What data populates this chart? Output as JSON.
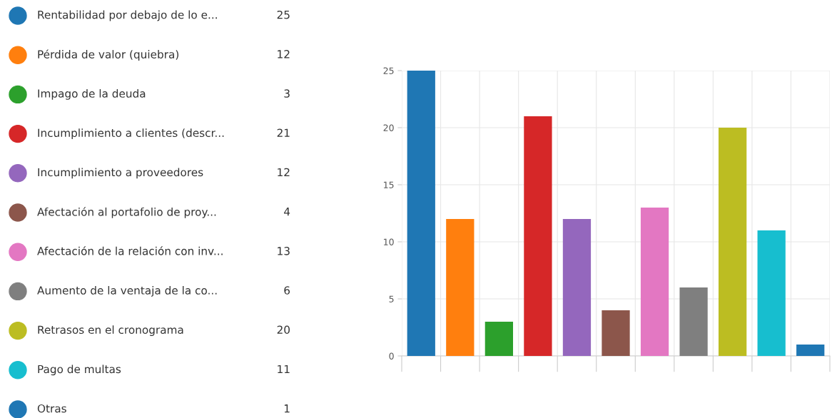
{
  "chart_data": [
    {
      "type": "other",
      "annotations": [
        "Rentabilidad por debajo de lo e...",
        "25",
        "Pérdida de valor (quiebra)",
        "12",
        "Impago de la deuda",
        "3",
        "Incumplimiento a clientes (descr...",
        "21",
        "Incumplimiento a proveedores",
        "12",
        "Afectación al portafolio de proy...",
        "4",
        "Afectación de la relación con inv...",
        "13",
        "Aumento de la ventaja de la co...",
        "6",
        "Retrasos en el cronograma",
        "20",
        "Pago de multas",
        "11",
        "Otras",
        "1"
      ],
      "colors": [
        "#1f77b4",
        "#ff7f0e",
        "#2ca02c",
        "#d62728",
        "#9467bd",
        "#8c564b",
        "#e377c2",
        "#7f7f7f",
        "#bcbd22",
        "#17becf",
        "#1f77b4"
      ]
    },
    {
      "type": "bar",
      "categories": [
        null,
        null,
        null,
        null,
        null,
        null,
        null,
        null,
        null,
        null,
        null
      ],
      "values": [
        25,
        12,
        3,
        21,
        12,
        4,
        13,
        6,
        20,
        11,
        1
      ],
      "colors": [
        "#1f77b4",
        "#ff7f0e",
        "#2ca02c",
        "#d62728",
        "#9467bd",
        "#8c564b",
        "#e377c2",
        "#7f7f7f",
        "#bcbd22",
        "#17becf",
        "#1f77b4"
      ],
      "ylim": [
        0,
        25
      ],
      "yticks": [
        0,
        5,
        10,
        15,
        20,
        25
      ],
      "grid": true,
      "tick_labels": "y"
    }
  ]
}
